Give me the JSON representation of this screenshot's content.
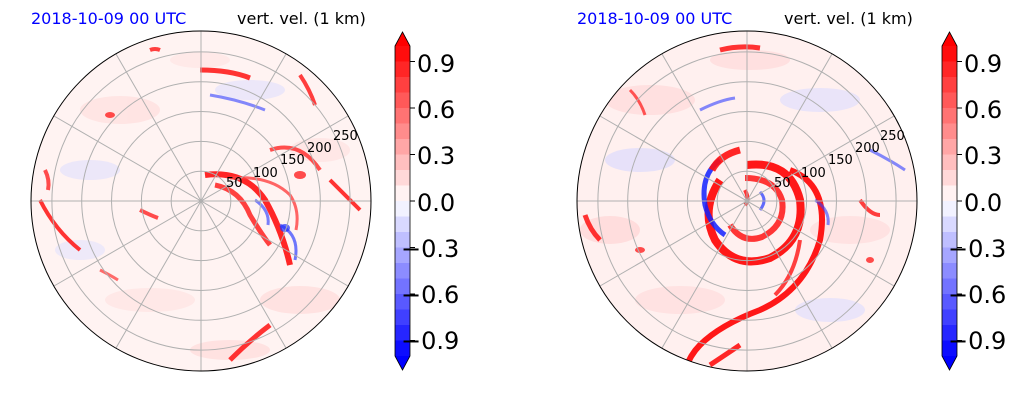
{
  "chart_data": [
    {
      "type": "heatmap",
      "projection": "polar",
      "date_label": "2018-10-09 00 UTC",
      "variable_label": "vert. vel. (1 km)",
      "radial_ticks": [
        "50",
        "100",
        "150",
        "200",
        "250"
      ],
      "radial_values": [
        50,
        100,
        150,
        200,
        250
      ],
      "r_max": 285,
      "grid": true,
      "colorbar": {
        "colormap": "bwr",
        "vmin": -1.0,
        "vmax": 1.0,
        "extend": "both",
        "ticks": [
          "0.9",
          "0.6",
          "0.3",
          "0.0",
          "−0.3",
          "−0.6",
          "−0.9"
        ],
        "tick_values": [
          0.9,
          0.6,
          0.3,
          0.0,
          -0.3,
          -0.6,
          -0.9
        ]
      },
      "features": "scattered weak updrafts; curved updraft bands east and south of center"
    },
    {
      "type": "heatmap",
      "projection": "polar",
      "date_label": "2018-10-09 00 UTC",
      "variable_label": "vert. vel. (1 km)",
      "radial_ticks": [
        "50",
        "100",
        "150",
        "200",
        "250"
      ],
      "radial_values": [
        50,
        100,
        150,
        200,
        250
      ],
      "r_max": 285,
      "grid": true,
      "colorbar": {
        "colormap": "bwr",
        "vmin": -1.0,
        "vmax": 1.0,
        "extend": "both",
        "ticks": [
          "0.9",
          "0.6",
          "0.3",
          "0.0",
          "−0.3",
          "−0.6",
          "−0.9"
        ],
        "tick_values": [
          0.9,
          0.6,
          0.3,
          0.0,
          -0.3,
          -0.6,
          -0.9
        ]
      },
      "features": "strong spiral updraft rings around center with downdraft eye; long spiral band to southwest"
    }
  ]
}
